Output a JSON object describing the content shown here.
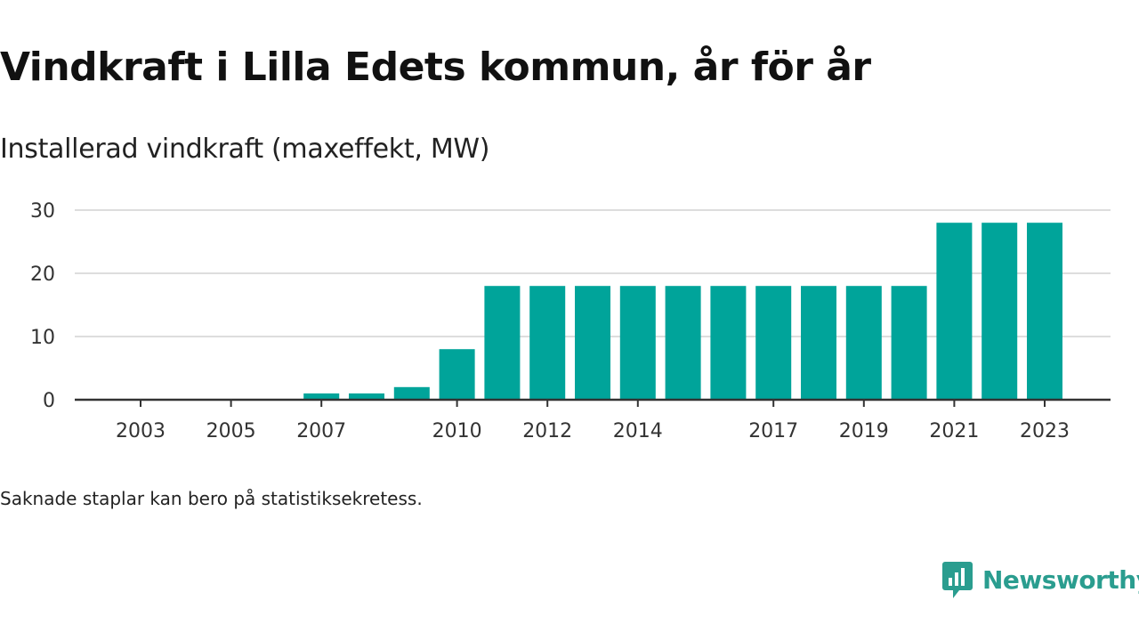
{
  "title": "Vindkraft i Lilla Edets kommun, år för år",
  "subtitle": "Installerad vindkraft (maxeffekt, MW)",
  "note": "Saknade staplar kan bero på statistiksekretess.",
  "brand": {
    "name": "Newsworthy",
    "icon": "newsworthy-logo-icon",
    "color": "#2a9d8f"
  },
  "colors": {
    "bar": "#00a49a",
    "grid": "#dddddd",
    "axis": "#333333"
  },
  "chart_data": {
    "type": "bar",
    "x": [
      2003,
      2004,
      2005,
      2006,
      2007,
      2008,
      2009,
      2010,
      2011,
      2012,
      2013,
      2014,
      2015,
      2016,
      2017,
      2018,
      2019,
      2020,
      2021,
      2022,
      2023
    ],
    "values": [
      0,
      0,
      0,
      0,
      1,
      1,
      2,
      8,
      18,
      18,
      18,
      18,
      18,
      18,
      18,
      18,
      18,
      18,
      28,
      28,
      28
    ],
    "xtick_labels": [
      "2003",
      "2005",
      "2007",
      "2010",
      "2012",
      "2014",
      "2017",
      "2019",
      "2021",
      "2023"
    ],
    "ytick_labels": [
      "0",
      "10",
      "20",
      "30"
    ],
    "ylim": [
      0,
      30
    ],
    "grid": true,
    "legend": "none",
    "xlabel": "",
    "ylabel": ""
  }
}
